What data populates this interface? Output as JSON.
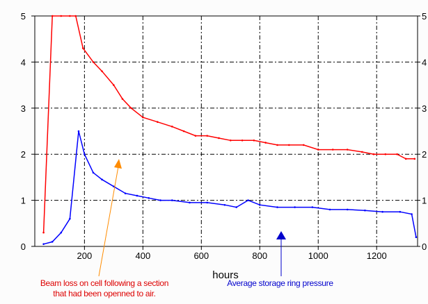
{
  "chart_data": {
    "type": "line",
    "xlabel": "hours",
    "ylabel": "",
    "xlim": [
      30,
      1340
    ],
    "ylim": [
      0,
      5
    ],
    "x_ticks": [
      200,
      400,
      600,
      800,
      1000,
      1200
    ],
    "y_ticks": [
      0,
      1,
      2,
      3,
      4,
      5
    ],
    "right_y_ticks": [
      0,
      1,
      2,
      3,
      4,
      5
    ],
    "grid": true,
    "series": [
      {
        "color": "#ff0000",
        "x": [
          60,
          90,
          120,
          150,
          170,
          195,
          230,
          260,
          300,
          330,
          360,
          400,
          450,
          500,
          540,
          580,
          620,
          660,
          700,
          740,
          780,
          820,
          860,
          900,
          950,
          1000,
          1050,
          1100,
          1150,
          1190,
          1230,
          1270,
          1300,
          1330
        ],
        "y": [
          0.3,
          5,
          5,
          5,
          5,
          4.3,
          4.0,
          3.8,
          3.5,
          3.2,
          3.0,
          2.8,
          2.7,
          2.6,
          2.5,
          2.4,
          2.4,
          2.35,
          2.3,
          2.3,
          2.3,
          2.25,
          2.2,
          2.2,
          2.2,
          2.1,
          2.1,
          2.1,
          2.05,
          2.0,
          2.0,
          2.0,
          1.9,
          1.9
        ]
      },
      {
        "color": "#0000ff",
        "x": [
          60,
          90,
          120,
          150,
          180,
          200,
          230,
          260,
          300,
          340,
          380,
          420,
          460,
          500,
          560,
          620,
          680,
          720,
          760,
          800,
          860,
          920,
          980,
          1040,
          1100,
          1160,
          1220,
          1280,
          1320,
          1335
        ],
        "y": [
          0.05,
          0.1,
          0.3,
          0.6,
          2.5,
          2.0,
          1.6,
          1.45,
          1.3,
          1.15,
          1.1,
          1.05,
          1.0,
          1.0,
          0.95,
          0.95,
          0.9,
          0.85,
          1.0,
          0.9,
          0.85,
          0.85,
          0.85,
          0.8,
          0.8,
          0.78,
          0.75,
          0.75,
          0.7,
          0.2
        ]
      }
    ]
  },
  "annotations": {
    "left_line1": "Beam loss on cell following a section",
    "left_line2": "that had been openned to air.",
    "right": "Average storage ring pressure"
  },
  "colors": {
    "left_annotation": "#dd0000",
    "right_annotation": "#0000cc",
    "left_arrow": "#ff8c00",
    "right_arrow": "#0000cc"
  }
}
